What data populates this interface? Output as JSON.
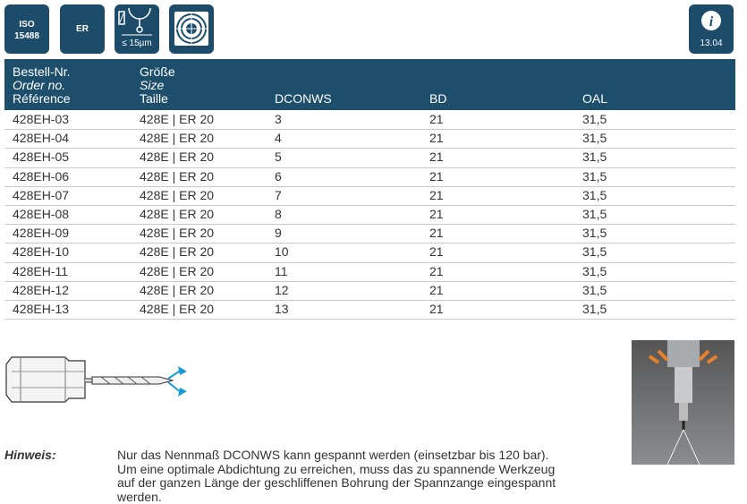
{
  "icons": {
    "iso": [
      "ISO",
      "15488"
    ],
    "er": "ER",
    "tolerance": "≤ 15µm",
    "info": "13.04"
  },
  "table": {
    "header": [
      [
        "Bestell-Nr.",
        "Order no.",
        "Référence"
      ],
      [
        "Größe",
        "Size",
        "Taille"
      ],
      [
        "DCONWS"
      ],
      [
        "BD"
      ],
      [
        "OAL"
      ]
    ],
    "rows": [
      [
        "428EH-03",
        "428E | ER 20",
        "3",
        "21",
        "31,5"
      ],
      [
        "428EH-04",
        "428E | ER 20",
        "4",
        "21",
        "31,5"
      ],
      [
        "428EH-05",
        "428E | ER 20",
        "5",
        "21",
        "31,5"
      ],
      [
        "428EH-06",
        "428E | ER 20",
        "6",
        "21",
        "31,5"
      ],
      [
        "428EH-07",
        "428E | ER 20",
        "7",
        "21",
        "31,5"
      ],
      [
        "428EH-08",
        "428E | ER 20",
        "8",
        "21",
        "31,5"
      ],
      [
        "428EH-09",
        "428E | ER 20",
        "9",
        "21",
        "31,5"
      ],
      [
        "428EH-10",
        "428E | ER 20",
        "10",
        "21",
        "31,5"
      ],
      [
        "428EH-11",
        "428E | ER 20",
        "11",
        "21",
        "31,5"
      ],
      [
        "428EH-12",
        "428E | ER 20",
        "12",
        "21",
        "31,5"
      ],
      [
        "428EH-13",
        "428E | ER 20",
        "13",
        "21",
        "31,5"
      ]
    ]
  },
  "note": {
    "label": "Hinweis:",
    "lines": [
      "Nur das Nennmaß DCONWS kann gespannt werden (einsetzbar bis 120 bar).",
      "Um eine optimale Abdichtung zu erreichen, muss das zu spannende Werkzeug",
      "auf der ganzen Länge der geschliffenen Bohrung der Spannzange eingespannt",
      "werden."
    ]
  }
}
